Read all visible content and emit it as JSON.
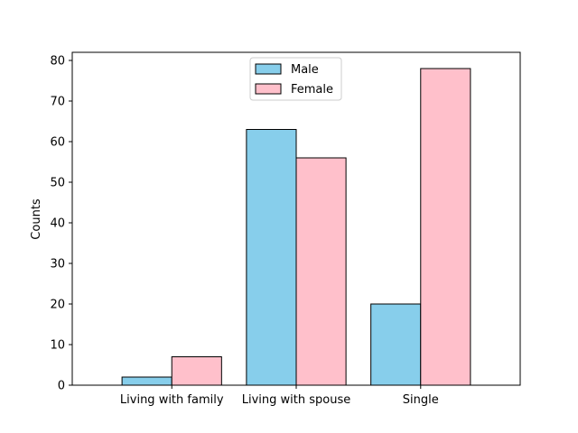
{
  "chart_data": {
    "type": "bar",
    "categories": [
      "Living with family",
      "Living with spouse",
      "Single"
    ],
    "series": [
      {
        "name": "Male",
        "values": [
          2,
          63,
          20
        ],
        "color": "#87ceeb"
      },
      {
        "name": "Female",
        "values": [
          7,
          56,
          78
        ],
        "color": "#ffc0cb"
      }
    ],
    "title": "",
    "xlabel": "",
    "ylabel": "Counts",
    "ylim": [
      0,
      82
    ],
    "yticks": [
      0,
      10,
      20,
      30,
      40,
      50,
      60,
      70,
      80
    ],
    "grid": false,
    "legend_position": "top-center",
    "edge_color": "#000000"
  }
}
